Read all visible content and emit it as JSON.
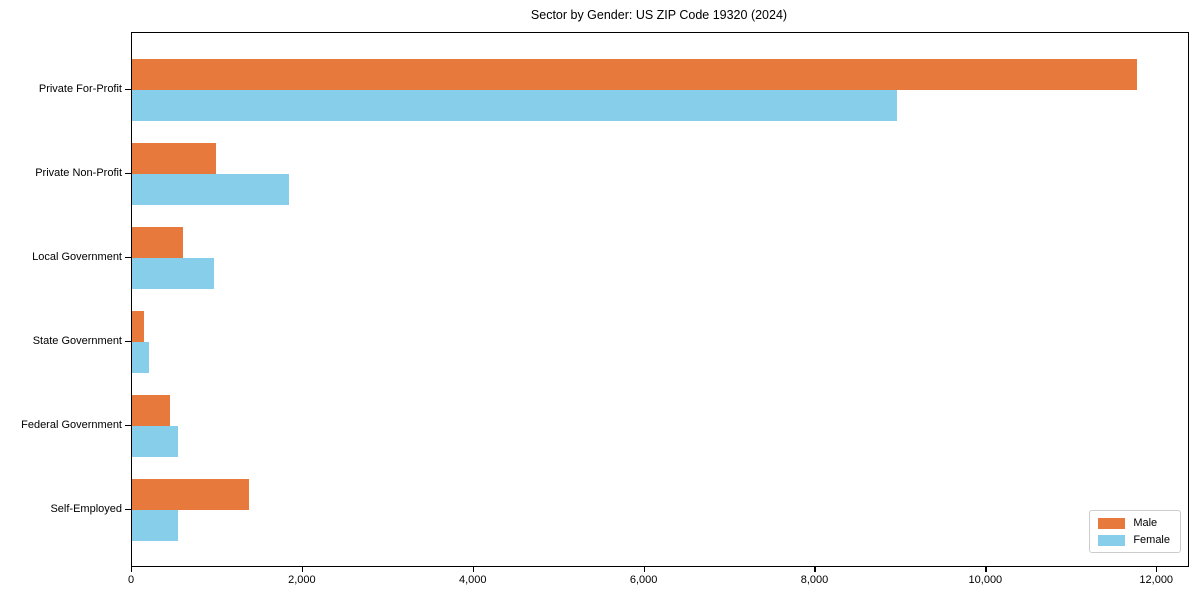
{
  "chart_data": {
    "type": "bar",
    "orientation": "horizontal",
    "title": "Sector by Gender: US ZIP Code 19320 (2024)",
    "categories": [
      "Private For-Profit",
      "Private Non-Profit",
      "Local Government",
      "State Government",
      "Federal Government",
      "Self-Employed"
    ],
    "series": [
      {
        "name": "Male",
        "color": "#e8793d",
        "values": [
          11760,
          985,
          600,
          140,
          450,
          1370
        ]
      },
      {
        "name": "Female",
        "color": "#87ceeb",
        "values": [
          8955,
          1840,
          960,
          200,
          540,
          540
        ]
      }
    ],
    "xlabel": "",
    "ylabel": "",
    "xlim": [
      0,
      12360
    ],
    "xticks": [
      0,
      2000,
      4000,
      6000,
      8000,
      10000,
      12000
    ],
    "grid": false,
    "legend_position": "lower right",
    "frame": true
  },
  "colors": {
    "male": "#e8793d",
    "female": "#87ceeb",
    "axis": "#000000",
    "legend_border": "#cccccc",
    "background": "#ffffff"
  }
}
